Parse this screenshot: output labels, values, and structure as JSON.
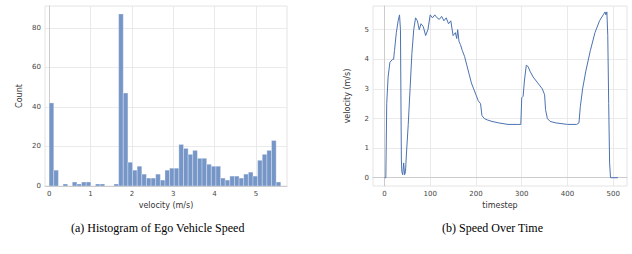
{
  "chart_data": [
    {
      "type": "histogram",
      "title": "(a) Histogram of Ego Vehicle Speed",
      "x_label": "velocity (m/s)",
      "y_label": "Count",
      "bins": [
        0,
        0.112,
        0.224,
        0.336,
        0.448,
        0.56,
        0.672,
        0.784,
        0.896,
        1.008,
        1.12,
        1.232,
        1.344,
        1.456,
        1.568,
        1.68,
        1.792,
        1.904,
        2.016,
        2.128,
        2.24,
        2.352,
        2.464,
        2.576,
        2.688,
        2.8,
        2.912,
        3.024,
        3.136,
        3.248,
        3.36,
        3.472,
        3.584,
        3.696,
        3.808,
        3.92,
        4.032,
        4.144,
        4.256,
        4.368,
        4.48,
        4.592,
        4.704,
        4.816,
        4.928,
        5.04,
        5.152,
        5.264,
        5.376,
        5.488,
        5.6
      ],
      "values": [
        42,
        8,
        0,
        1,
        0,
        2,
        1,
        2,
        2,
        0,
        1,
        1,
        0,
        0,
        1,
        87,
        47,
        12,
        8,
        10,
        6,
        4,
        4,
        6,
        3,
        8,
        9,
        9,
        21,
        19,
        16,
        18,
        14,
        14,
        11,
        10,
        10,
        4,
        3,
        5,
        5,
        4,
        6,
        7,
        5,
        13,
        16,
        18,
        23,
        2
      ],
      "color": "#7696c8",
      "xlim": [
        -0.1,
        5.75
      ],
      "xticks": [
        0,
        1,
        2,
        3,
        4,
        5
      ],
      "ylim": [
        0,
        91
      ],
      "yticks": [
        0,
        20,
        40,
        60,
        80
      ],
      "grid": true
    },
    {
      "type": "line",
      "title": "(b) Speed Over Time",
      "x_label": "timestep",
      "y_label": "velocity (m/s)",
      "x": [
        0,
        3,
        5,
        8,
        12,
        18,
        20,
        22,
        26,
        30,
        33,
        35,
        37,
        38,
        40,
        42,
        44,
        46,
        48,
        52,
        56,
        60,
        64,
        68,
        72,
        76,
        80,
        85,
        90,
        95,
        100,
        105,
        110,
        115,
        120,
        125,
        130,
        135,
        140,
        145,
        150,
        155,
        158,
        160,
        163,
        166,
        170,
        175,
        180,
        185,
        190,
        195,
        200,
        205,
        210,
        213,
        218,
        225,
        235,
        250,
        270,
        290,
        298,
        300,
        303,
        306,
        310,
        314,
        318,
        325,
        335,
        345,
        350,
        352,
        356,
        362,
        375,
        400,
        420,
        425,
        428,
        433,
        440,
        450,
        460,
        470,
        478,
        482,
        484,
        486,
        488,
        490,
        492,
        494,
        510
      ],
      "values": [
        0,
        0,
        2.5,
        3.4,
        3.9,
        4.0,
        4.0,
        4.3,
        4.9,
        5.3,
        5.5,
        5.0,
        0.6,
        0.2,
        0.1,
        0.5,
        0.1,
        0.2,
        0.8,
        1.8,
        3.0,
        4.2,
        5.0,
        5.4,
        5.3,
        5.0,
        5.2,
        5.1,
        4.8,
        5.0,
        5.5,
        5.4,
        5.5,
        5.4,
        5.35,
        5.45,
        5.3,
        5.4,
        5.2,
        5.3,
        4.8,
        4.9,
        4.7,
        5.0,
        4.6,
        4.5,
        4.3,
        4.1,
        3.8,
        3.5,
        3.2,
        3.0,
        2.8,
        2.6,
        2.5,
        2.1,
        2.0,
        1.95,
        1.9,
        1.85,
        1.8,
        1.8,
        1.8,
        2.7,
        2.75,
        3.3,
        3.8,
        3.75,
        3.6,
        3.4,
        3.2,
        3.0,
        2.8,
        2.3,
        2.0,
        1.9,
        1.85,
        1.8,
        1.8,
        1.85,
        2.4,
        3.0,
        3.6,
        4.3,
        4.9,
        5.3,
        5.5,
        5.6,
        5.5,
        5.6,
        4.8,
        2.5,
        0.5,
        0.0,
        0.0
      ],
      "color": "#4c72b0",
      "xlim": [
        -25,
        530
      ],
      "xticks": [
        0,
        100,
        200,
        300,
        400,
        500
      ],
      "ylim": [
        -0.28,
        5.8
      ],
      "yticks": [
        0,
        1,
        2,
        3,
        4,
        5
      ],
      "grid": true
    }
  ]
}
